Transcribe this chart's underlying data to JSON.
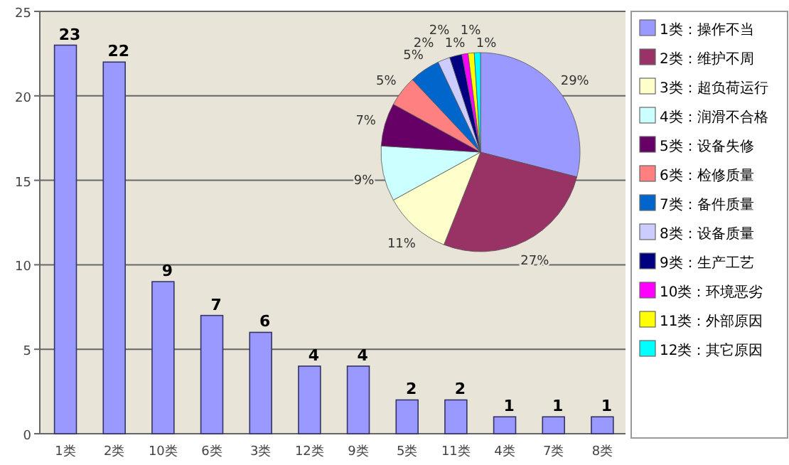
{
  "chart_data": [
    {
      "type": "bar",
      "categories": [
        "1类",
        "2类",
        "10类",
        "6类",
        "3类",
        "12类",
        "9类",
        "5类",
        "11类",
        "4类",
        "7类",
        "8类"
      ],
      "values": [
        23,
        22,
        9,
        7,
        6,
        4,
        4,
        2,
        2,
        1,
        1,
        1
      ],
      "color": "#9999ff",
      "ylim": [
        0,
        25
      ],
      "yticks": [
        0,
        5,
        10,
        15,
        20,
        25
      ],
      "grid": "y",
      "data_labels": true
    },
    {
      "type": "pie",
      "categories": [
        "1类：操作不当",
        "2类：维护不周",
        "3类：超负荷运行",
        "4类：润滑不合格",
        "5类：设备失修",
        "6类：检修质量",
        "7类：备件质量",
        "8类：设备质量",
        "9类：生产工艺",
        "10类：环境恶劣",
        "11类：外部原因",
        "12类：其它原因"
      ],
      "values": [
        29,
        27,
        11,
        9,
        7,
        5,
        5,
        2,
        2,
        1,
        1,
        1
      ],
      "value_labels": [
        "29%",
        "27%",
        "11%",
        "9%",
        "7%",
        "5%",
        "5%",
        "2%",
        "2%",
        "1%",
        "1%",
        "1%"
      ],
      "colors": [
        "#9999ff",
        "#993366",
        "#ffffcc",
        "#ccffff",
        "#660066",
        "#ff8080",
        "#0066cc",
        "#ccccff",
        "#000080",
        "#ff00ff",
        "#ffff00",
        "#00ffff"
      ],
      "legend": "right"
    }
  ]
}
